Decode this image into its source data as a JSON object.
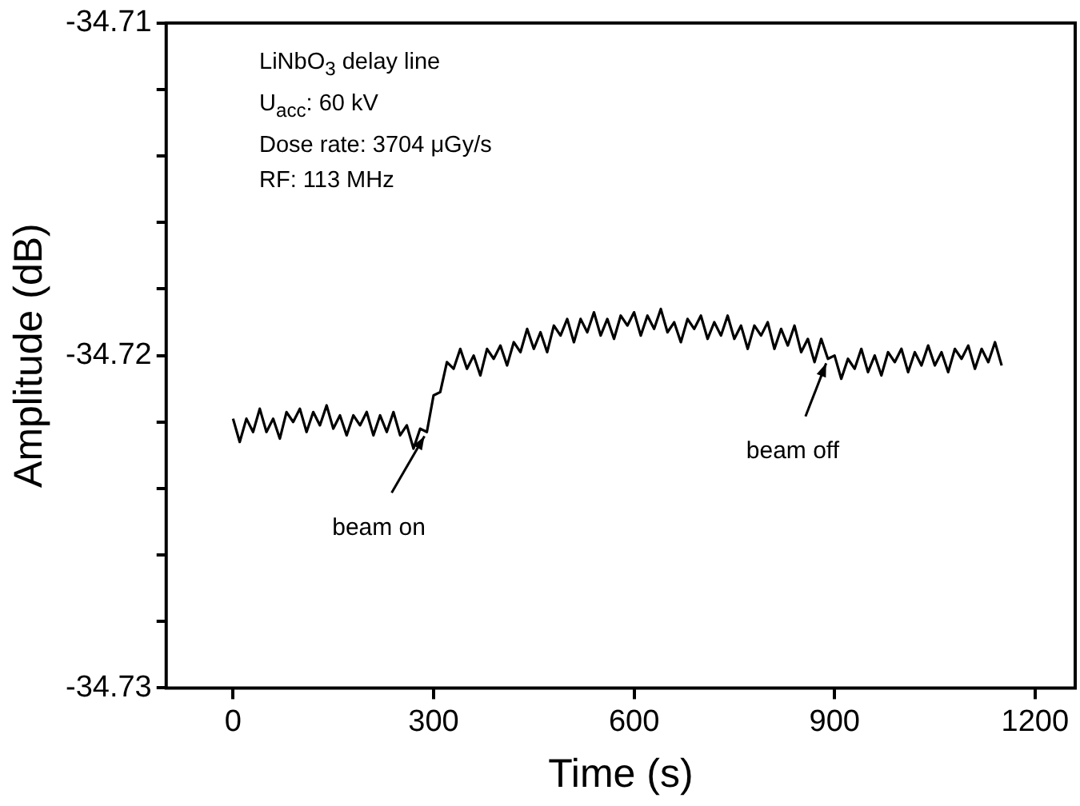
{
  "chart_data": {
    "type": "line",
    "xlabel": "Time (s)",
    "ylabel": "Amplitude (dB)",
    "xlim": [
      -100,
      1260
    ],
    "xticks": [
      0,
      300,
      600,
      900,
      1200
    ],
    "ylim": [
      -34.73,
      -34.71
    ],
    "yticks": [
      -34.73,
      {
        "value": -34.728,
        "label": null
      },
      {
        "value": -34.726,
        "label": null
      },
      {
        "value": -34.724,
        "label": null
      },
      {
        "value": -34.722,
        "label": null
      },
      -34.72,
      {
        "value": -34.718,
        "label": null
      },
      {
        "value": -34.716,
        "label": null
      },
      {
        "value": -34.714,
        "label": null
      },
      {
        "value": -34.712,
        "label": null
      },
      -34.71
    ],
    "grid": false,
    "legend": false,
    "annotations": [
      "LiNbO$_{3}$ delay line",
      "U$_{acc}$: 60 kV",
      "Dose rate: 3704 μGy/s",
      "RF: 113 MHz",
      {
        "text": "beam on",
        "x": 290,
        "y": -34.7223
      },
      {
        "text": "beam off",
        "x": 890,
        "y": -34.7201
      }
    ],
    "series": [
      {
        "color": "#000000",
        "x": [
          0,
          10,
          20,
          30,
          40,
          50,
          60,
          70,
          80,
          90,
          100,
          110,
          120,
          130,
          140,
          150,
          160,
          170,
          180,
          190,
          200,
          210,
          220,
          230,
          240,
          250,
          260,
          270,
          280,
          290,
          300,
          310,
          320,
          330,
          340,
          350,
          360,
          370,
          380,
          390,
          400,
          410,
          420,
          430,
          440,
          450,
          460,
          470,
          480,
          490,
          500,
          510,
          520,
          530,
          540,
          550,
          560,
          570,
          580,
          590,
          600,
          610,
          620,
          630,
          640,
          650,
          660,
          670,
          680,
          690,
          700,
          710,
          720,
          730,
          740,
          750,
          760,
          770,
          780,
          790,
          800,
          810,
          820,
          830,
          840,
          850,
          860,
          870,
          880,
          890,
          900,
          910,
          920,
          930,
          940,
          950,
          960,
          970,
          980,
          990,
          1000,
          1010,
          1020,
          1030,
          1040,
          1050,
          1060,
          1070,
          1080,
          1090,
          1100,
          1110,
          1120,
          1130,
          1140,
          1150
        ],
        "values": [
          -34.7219,
          -34.7226,
          -34.7219,
          -34.7223,
          -34.7216,
          -34.7223,
          -34.7219,
          -34.7225,
          -34.7217,
          -34.722,
          -34.7216,
          -34.7223,
          -34.7217,
          -34.7221,
          -34.7215,
          -34.7222,
          -34.7218,
          -34.7224,
          -34.7218,
          -34.7221,
          -34.7217,
          -34.7224,
          -34.7218,
          -34.7223,
          -34.7217,
          -34.7224,
          -34.7221,
          -34.7228,
          -34.7222,
          -34.7223,
          -34.7212,
          -34.7211,
          -34.7202,
          -34.7204,
          -34.7198,
          -34.7204,
          -34.72,
          -34.7206,
          -34.7198,
          -34.7201,
          -34.7197,
          -34.7203,
          -34.7196,
          -34.7199,
          -34.7192,
          -34.7198,
          -34.7193,
          -34.7199,
          -34.7191,
          -34.7194,
          -34.7189,
          -34.7196,
          -34.7189,
          -34.7193,
          -34.7187,
          -34.7194,
          -34.7189,
          -34.7195,
          -34.7188,
          -34.7191,
          -34.7187,
          -34.7194,
          -34.7188,
          -34.7192,
          -34.7186,
          -34.7193,
          -34.719,
          -34.7196,
          -34.7189,
          -34.7192,
          -34.7188,
          -34.7195,
          -34.719,
          -34.7194,
          -34.7188,
          -34.7195,
          -34.7191,
          -34.7198,
          -34.7191,
          -34.7194,
          -34.719,
          -34.7198,
          -34.7192,
          -34.7197,
          -34.7191,
          -34.7199,
          -34.7195,
          -34.7202,
          -34.7195,
          -34.7201,
          -34.72,
          -34.7207,
          -34.7201,
          -34.7204,
          -34.7198,
          -34.7205,
          -34.72,
          -34.7206,
          -34.7199,
          -34.7202,
          -34.7198,
          -34.7205,
          -34.7199,
          -34.7203,
          -34.7197,
          -34.7203,
          -34.7199,
          -34.7205,
          -34.7198,
          -34.7201,
          -34.7197,
          -34.7204,
          -34.7198,
          -34.7202,
          -34.7196,
          -34.7203
        ]
      }
    ]
  }
}
